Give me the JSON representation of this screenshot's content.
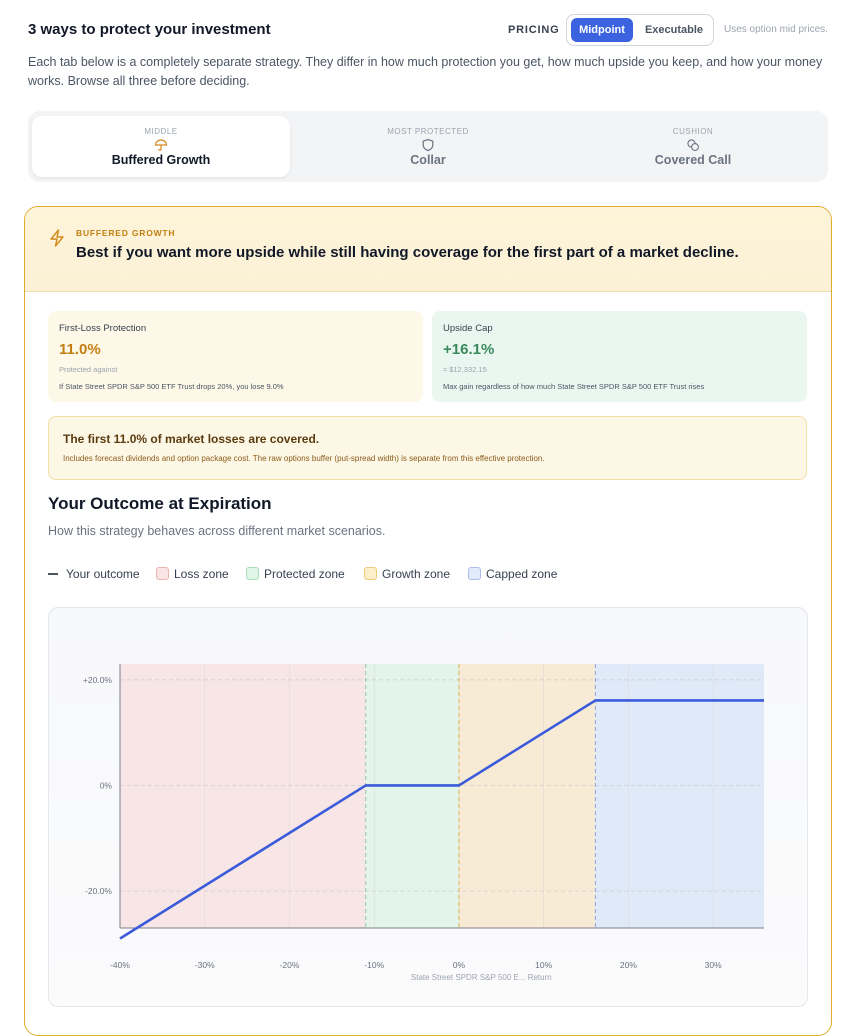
{
  "header": {
    "title": "3 ways to protect your investment",
    "pricing_label": "PRICING",
    "pricing_options": [
      "Midpoint",
      "Executable"
    ],
    "pricing_selected": "Midpoint",
    "pricing_note": "Uses option mid prices."
  },
  "intro": "Each tab below is a completely separate strategy. They differ in how much protection you get, how much upside you keep, and how your money works. Browse all three before deciding.",
  "tabs": [
    {
      "kicker": "MIDDLE",
      "label": "Buffered Growth",
      "icon": "umbrella-icon",
      "active": true
    },
    {
      "kicker": "MOST PROTECTED",
      "label": "Collar",
      "icon": "shield-icon",
      "active": false
    },
    {
      "kicker": "CUSHION",
      "label": "Covered Call",
      "icon": "coins-icon",
      "active": false
    }
  ],
  "strategy": {
    "kicker": "BUFFERED GROWTH",
    "headline": "Best if you want more upside while still having coverage for the first part of a market decline.",
    "accent_color": "#e2ad2c"
  },
  "stats": {
    "protection": {
      "label": "First-Loss Protection",
      "value": "11.0%",
      "sub": "Protected against",
      "note": "If State Street SPDR S&P 500 ETF Trust drops 20%, you lose 9.0%"
    },
    "cap": {
      "label": "Upside Cap",
      "value": "+16.1%",
      "sub": "≈ $12,332.15",
      "note": "Max gain regardless of how much State Street SPDR S&P 500 ETF Trust rises"
    }
  },
  "banner": {
    "title": "The first 11.0% of market losses are covered.",
    "subtitle": "Includes forecast dividends and option package cost. The raw options buffer (put-spread width) is separate from this effective protection."
  },
  "outcome": {
    "title": "Your Outcome at Expiration",
    "subtitle": "How this strategy behaves across different market scenarios."
  },
  "legend": [
    {
      "label": "Your outcome",
      "kind": "line",
      "color": "#4b5563"
    },
    {
      "label": "Loss zone",
      "kind": "box",
      "color": "#f8d7d7"
    },
    {
      "label": "Protected zone",
      "kind": "box",
      "color": "#d6f3e0"
    },
    {
      "label": "Growth zone",
      "kind": "box",
      "color": "#fbe9bf"
    },
    {
      "label": "Capped zone",
      "kind": "box",
      "color": "#dbe6fb"
    }
  ],
  "chart_data": {
    "type": "line",
    "xlabel": "State Street SPDR S&P 500 E... Return",
    "ylabel": "",
    "xlim": [
      -40,
      36
    ],
    "ylim": [
      -27,
      23
    ],
    "x_ticks": [
      -40,
      -30,
      -20,
      -10,
      0,
      10,
      20,
      30
    ],
    "x_tick_labels": [
      "-40%",
      "-30%",
      "-20%",
      "-10%",
      "0%",
      "10%",
      "20%",
      "30%"
    ],
    "y_ticks": [
      20,
      0,
      -20
    ],
    "y_tick_labels": [
      "+20.0%",
      "0%",
      "-20.0%"
    ],
    "grid": true,
    "zones": [
      {
        "name": "Loss zone",
        "from": -40,
        "to": -11,
        "color": "#f8e6e6"
      },
      {
        "name": "Protected zone",
        "from": -11,
        "to": 0,
        "color": "#e3f5ea"
      },
      {
        "name": "Growth zone",
        "from": 0,
        "to": 16.1,
        "color": "#f8ebd6"
      },
      {
        "name": "Capped zone",
        "from": 16.1,
        "to": 36,
        "color": "#e0e9f8"
      }
    ],
    "boundaries": [
      {
        "x": -11,
        "color": "#8fc9a4"
      },
      {
        "x": 0,
        "color": "#e2b25c"
      },
      {
        "x": 16.1,
        "color": "#8aa6e2"
      }
    ],
    "series": [
      {
        "color": "#3b5bdb",
        "x": [
          -40,
          -11,
          0,
          16.1,
          36
        ],
        "y": [
          -29,
          0,
          0,
          16.1,
          16.1
        ]
      }
    ]
  }
}
